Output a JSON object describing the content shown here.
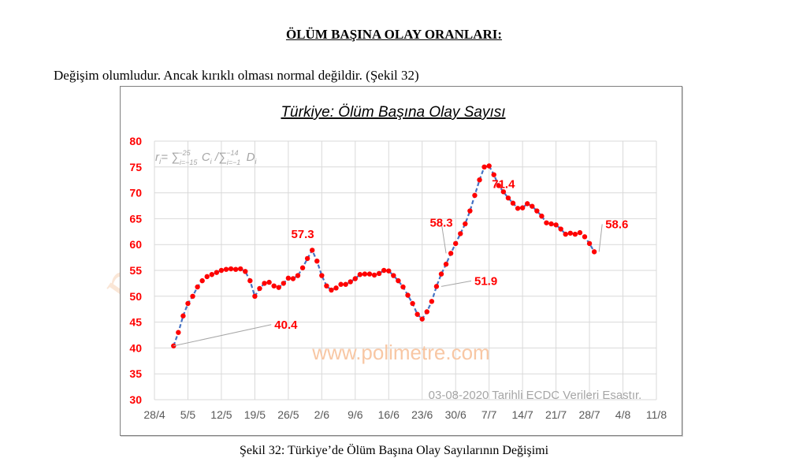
{
  "page": {
    "heading": "ÖLÜM BAŞINA OLAY ORANLARI:",
    "paragraph": "Değişim olumludur. Ancak kırıklı olması normal değildir. (Şekil 32)",
    "caption": "Şekil 32: Türkiye’de Ölüm Başına Olay Sayılarının Değişimi",
    "background_watermark": "polimetre"
  },
  "chart_data": {
    "type": "line",
    "title": "Türkiye: Ölüm Başına Olay Sayısı",
    "formula_note": "rᵢ= ∑",
    "watermark": "www.polimetre.com",
    "source_note": "03-08-2020 Tarihli ECDC Verileri Esastır.",
    "xlabel": "",
    "ylabel": "",
    "x_ticks": [
      "28/4",
      "5/5",
      "12/5",
      "19/5",
      "26/5",
      "2/6",
      "9/6",
      "16/6",
      "23/6",
      "30/6",
      "7/7",
      "14/7",
      "21/7",
      "28/7",
      "4/8",
      "11/8"
    ],
    "y_ticks": [
      30,
      35,
      40,
      45,
      50,
      55,
      60,
      65,
      70,
      75,
      80
    ],
    "ylim": [
      30,
      80
    ],
    "grid": true,
    "colors": {
      "line": "#4472c4",
      "markers": "#ff0000",
      "y_tick_labels": "#ff0000",
      "annotations": "#ff0000"
    },
    "series": [
      {
        "start": "2/5",
        "values": [
          40.4,
          43.0,
          46.2,
          48.6,
          50.0,
          51.8,
          53.0,
          53.8,
          54.2,
          54.6,
          55.0,
          55.2,
          55.3,
          55.2,
          55.3,
          54.8,
          53.0,
          50.0,
          51.5,
          52.5,
          52.7,
          52.0,
          51.7,
          52.5,
          53.5,
          53.4,
          54.0,
          55.5,
          57.3,
          58.9,
          56.8,
          54.0,
          52.0,
          51.2,
          51.6,
          52.3,
          52.3,
          52.8,
          53.4,
          54.2,
          54.3,
          54.3,
          54.1,
          54.4,
          55.0,
          54.9,
          54.0,
          53.0,
          51.8,
          50.2,
          48.6,
          46.5,
          45.6,
          47.0,
          49.0,
          51.9,
          54.3,
          56.2,
          58.3,
          60.2,
          62.1,
          64.0,
          66.5,
          69.5,
          72.5,
          75.0,
          75.2,
          73.5,
          71.4,
          70.2,
          69.0,
          68.0,
          67.0,
          67.1,
          67.9,
          67.4,
          66.5,
          65.5,
          64.2,
          64.0,
          63.8,
          63.0,
          62.0,
          62.2,
          62.0,
          62.3,
          61.5,
          60.2,
          58.6
        ]
      }
    ],
    "annotations": [
      {
        "label": "40.4",
        "x": "2/5",
        "y": 40.4
      },
      {
        "label": "57.3",
        "x": "29/5",
        "y": 57.3
      },
      {
        "label": "58.3",
        "x": "28/6",
        "y": 58.3
      },
      {
        "label": "51.9",
        "x": "27/6",
        "y": 51.9
      },
      {
        "label": "71.4",
        "x": "10/7",
        "y": 71.4
      },
      {
        "label": "58.6",
        "x": "30/7",
        "y": 58.6
      }
    ]
  }
}
